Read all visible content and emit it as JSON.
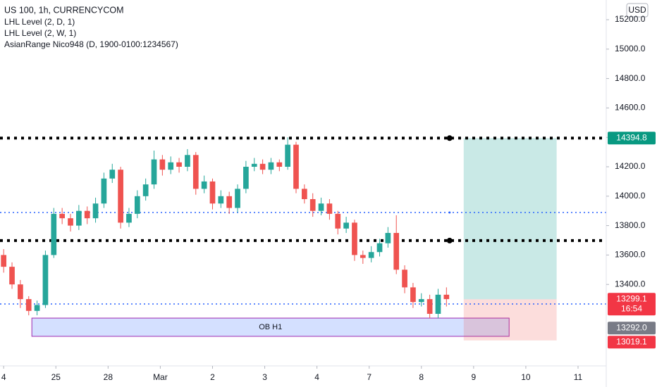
{
  "chart_data": {
    "type": "candlestick",
    "title": "US 100, 1h, CURRENCYCOM",
    "indicators": [
      "LHL Level (2, D, 1)",
      "LHL Level (2, W, 1)",
      "AsianRange Nico948 (D, 1900-0100:1234567)"
    ],
    "currency": "USD",
    "up_color": "#26a69a",
    "down_color": "#ef5350",
    "x": [
      0,
      0.16,
      0.32,
      0.48,
      0.64,
      0.8,
      0.96,
      1.12,
      1.28,
      1.44,
      1.6,
      1.76,
      1.92,
      2.08,
      2.24,
      2.4,
      2.56,
      2.72,
      2.88,
      3.04,
      3.2,
      3.36,
      3.52,
      3.68,
      3.84,
      4,
      4.16,
      4.32,
      4.48,
      4.64,
      4.8,
      4.96,
      5.12,
      5.28,
      5.44,
      5.6,
      5.76,
      5.92,
      6.08,
      6.24,
      6.4,
      6.56,
      6.72,
      6.88,
      7.04,
      7.2,
      7.36,
      7.52,
      7.68,
      7.84,
      8,
      8.16,
      8.32,
      8.48
    ],
    "open": [
      13600,
      13520,
      13400,
      13300,
      13220,
      13260,
      13600,
      13880,
      13850,
      13800,
      13900,
      13850,
      13950,
      14120,
      14180,
      13820,
      13880,
      14000,
      14080,
      14250,
      14180,
      14230,
      14200,
      14280,
      14050,
      14100,
      13950,
      14000,
      13920,
      14050,
      14200,
      14220,
      14180,
      14230,
      14200,
      14350,
      14050,
      13980,
      13900,
      13950,
      13880,
      13780,
      13820,
      13600,
      13580,
      13620,
      13680,
      13750,
      13500,
      13380,
      13280,
      13300,
      13200,
      13330
    ],
    "high": [
      13640,
      13550,
      13430,
      13320,
      13290,
      13630,
      13920,
      13920,
      13880,
      13940,
      13930,
      13990,
      14160,
      14220,
      14200,
      13920,
      14040,
      14120,
      14310,
      14280,
      14270,
      14260,
      14320,
      14300,
      14140,
      14120,
      14040,
      14030,
      14080,
      14240,
      14260,
      14250,
      14260,
      14250,
      14400,
      14370,
      14080,
      14020,
      13990,
      13980,
      13900,
      13860,
      13840,
      13630,
      13660,
      13710,
      13790,
      13870,
      13530,
      13410,
      13340,
      13330,
      13370,
      13380
    ],
    "low": [
      13480,
      13370,
      13240,
      13190,
      13190,
      13240,
      13580,
      13810,
      13760,
      13770,
      13810,
      13820,
      13920,
      14090,
      13780,
      13790,
      13850,
      13970,
      14050,
      14140,
      14150,
      14160,
      14170,
      14010,
      14020,
      13910,
      13920,
      13880,
      13890,
      14020,
      14170,
      14150,
      14150,
      14170,
      14180,
      14020,
      13950,
      13860,
      13870,
      13840,
      13740,
      13750,
      13560,
      13540,
      13550,
      13590,
      13650,
      13470,
      13340,
      13240,
      13250,
      13170,
      13170,
      13250
    ],
    "close": [
      13520,
      13400,
      13300,
      13220,
      13260,
      13600,
      13880,
      13850,
      13800,
      13900,
      13850,
      13950,
      14120,
      14180,
      13820,
      13880,
      14000,
      14080,
      14250,
      14180,
      14230,
      14200,
      14280,
      14050,
      14100,
      13950,
      14000,
      13920,
      14050,
      14200,
      14220,
      14180,
      14230,
      14200,
      14350,
      14050,
      13980,
      13900,
      13950,
      13880,
      13780,
      13820,
      13600,
      13580,
      13620,
      13680,
      13750,
      13500,
      13380,
      13280,
      13300,
      13200,
      13330,
      13300
    ],
    "xlim": [
      -0.07,
      11.54
    ],
    "xticks": [
      {
        "value": 0,
        "label": "4"
      },
      {
        "value": 1,
        "label": "25"
      },
      {
        "value": 2,
        "label": "28"
      },
      {
        "value": 3,
        "label": "Mar"
      },
      {
        "value": 4,
        "label": "2"
      },
      {
        "value": 5,
        "label": "3"
      },
      {
        "value": 6,
        "label": "4"
      },
      {
        "value": 7,
        "label": "7"
      },
      {
        "value": 8,
        "label": "8"
      },
      {
        "value": 9,
        "label": "9"
      },
      {
        "value": 10,
        "label": "10"
      },
      {
        "value": 11,
        "label": "11"
      }
    ],
    "ylim": [
      12846,
      15334
    ],
    "yticks": [
      {
        "value": 13400,
        "label": "13400.0"
      },
      {
        "value": 13600,
        "label": "13600.0"
      },
      {
        "value": 13800,
        "label": "13800.0"
      },
      {
        "value": 14000,
        "label": "14000.0"
      },
      {
        "value": 14200,
        "label": "14200.0"
      },
      {
        "value": 14400,
        "label": "14400.0"
      },
      {
        "value": 14600,
        "label": "14600.0"
      },
      {
        "value": 14800,
        "label": "14800.0"
      },
      {
        "value": 15000,
        "label": "15000.0"
      },
      {
        "value": 15200,
        "label": "15200.0"
      }
    ],
    "levels": [
      {
        "value": 14394.8,
        "color": "#000000",
        "width": 4,
        "dot_x": 8.54
      },
      {
        "value": 13698,
        "color": "#000000",
        "width": 4,
        "dot_x": 8.54
      },
      {
        "value": 13889,
        "color": "#2962ff",
        "width": 1.5,
        "dot_x": 8.54
      },
      {
        "value": 13267,
        "color": "#2962ff",
        "width": 1.5
      }
    ],
    "zones": [
      {
        "label": "OB H1",
        "x": [
          0.54,
          9.68
        ],
        "y": [
          13047,
          13171
        ],
        "fill": "rgba(41,98,255,0.2)",
        "stroke": "#9c27b0"
      },
      {
        "x": [
          8.81,
          10.59
        ],
        "y": [
          13299.1,
          14394.8
        ],
        "fill": "rgba(38,166,154,0.25)"
      },
      {
        "x": [
          8.81,
          10.59
        ],
        "y": [
          13019.1,
          13299.1
        ],
        "fill": "rgba(239,83,80,0.2)"
      }
    ],
    "price_tags": [
      {
        "value": 14394.8,
        "color": "#089981"
      },
      {
        "value": 13299.1,
        "color": "#f23645"
      },
      {
        "value": {
          "value": 13292,
          "label": "13292.0"
        },
        "color": "#787b86"
      },
      {
        "value": 13019.1,
        "color": "#f23645"
      }
    ],
    "countdown": "16:54"
  }
}
